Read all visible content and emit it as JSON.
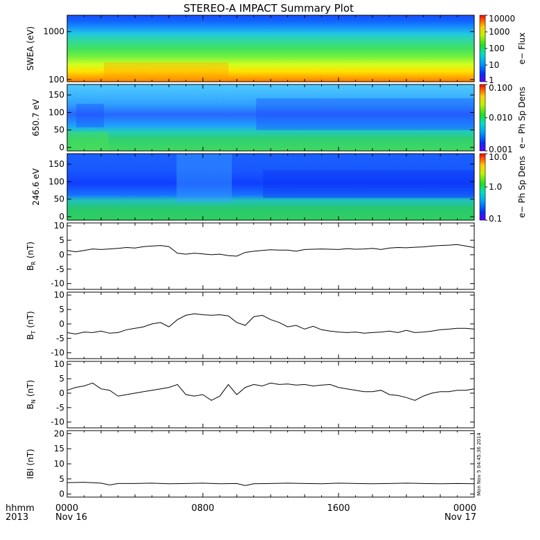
{
  "title": "STEREO-A IMPACT Summary Plot",
  "x_axis": {
    "row1_label": "hhmm",
    "row2_label": "2013",
    "ticks": [
      {
        "time": "0000",
        "date": "Nov 16",
        "hours": 0
      },
      {
        "time": "0800",
        "date": "",
        "hours": 8
      },
      {
        "time": "1600",
        "date": "",
        "hours": 16
      },
      {
        "time": "0000",
        "date": "Nov 17",
        "hours": 24
      }
    ],
    "range_hours": [
      0,
      24
    ]
  },
  "timestamp": "Mon Nov 5 04:45:36 2014",
  "chart_data": [
    {
      "type": "heatmap",
      "id": "swea",
      "ylabel": "SWEA (eV)",
      "yscale": "log",
      "ylim": [
        90,
        2200
      ],
      "yticks": [
        {
          "v": 100,
          "label": "100"
        },
        {
          "v": 1000,
          "label": "1000"
        }
      ],
      "colorbar": {
        "scale": "log",
        "range": [
          1,
          10000
        ],
        "ticks": [
          "1",
          "10",
          "100",
          "1000",
          "10000"
        ],
        "label": "e− Flux"
      },
      "description": "energy spectrogram, flux high (orange/red) at ~100 eV decreasing to blue above ~1500 eV"
    },
    {
      "type": "heatmap",
      "id": "pad650",
      "ylabel": "650.7 eV",
      "yscale": "linear",
      "ylim": [
        -10,
        180
      ],
      "yticks": [
        {
          "v": 0,
          "label": "0"
        },
        {
          "v": 50,
          "label": "50"
        },
        {
          "v": 100,
          "label": "100"
        },
        {
          "v": 150,
          "label": "150"
        }
      ],
      "colorbar": {
        "scale": "log",
        "range": [
          0.001,
          0.1
        ],
        "ticks": [
          "0.001",
          "0.010",
          "0.100"
        ],
        "label": "e− Ph Sp Dens"
      }
    },
    {
      "type": "heatmap",
      "id": "pad246",
      "ylabel": "246.6 eV",
      "yscale": "linear",
      "ylim": [
        -10,
        180
      ],
      "yticks": [
        {
          "v": 0,
          "label": "0"
        },
        {
          "v": 50,
          "label": "50"
        },
        {
          "v": 100,
          "label": "100"
        },
        {
          "v": 150,
          "label": "150"
        }
      ],
      "colorbar": {
        "scale": "log",
        "range": [
          0.1,
          10.0
        ],
        "ticks": [
          "0.1",
          "1.0",
          "10.0"
        ],
        "label": "e− Ph Sp Dens"
      }
    },
    {
      "type": "line",
      "id": "br",
      "ylabel": "B_R (nT)",
      "ylabel_main": "B",
      "ylabel_sub": "R",
      "ylabel_unit": "(nT)",
      "ylim": [
        -12,
        11
      ],
      "yticks": [
        {
          "v": 10,
          "label": "10"
        },
        {
          "v": 5,
          "label": "5"
        },
        {
          "v": 0,
          "label": "0"
        },
        {
          "v": -5,
          "label": "-5"
        },
        {
          "v": -10,
          "label": "-10"
        }
      ],
      "x": [
        0,
        0.5,
        1,
        1.5,
        2,
        2.5,
        3,
        3.5,
        4,
        4.5,
        5,
        5.5,
        6,
        6.5,
        7,
        7.5,
        8,
        8.5,
        9,
        9.5,
        10,
        10.5,
        11,
        11.5,
        12,
        12.5,
        13,
        13.5,
        14,
        14.5,
        15,
        15.5,
        16,
        16.5,
        17,
        17.5,
        18,
        18.5,
        19,
        19.5,
        20,
        20.5,
        21,
        21.5,
        22,
        22.5,
        23,
        23.5,
        24
      ],
      "y": [
        1.5,
        1.0,
        1.5,
        2.0,
        1.8,
        2.0,
        2.2,
        2.5,
        2.3,
        2.8,
        3.0,
        3.2,
        2.8,
        0.5,
        0.2,
        0.5,
        0.3,
        0.0,
        0.2,
        -0.3,
        -0.5,
        0.8,
        1.2,
        1.5,
        1.7,
        1.6,
        1.6,
        1.2,
        1.8,
        1.9,
        2.0,
        1.9,
        1.8,
        2.1,
        1.9,
        2.0,
        2.2,
        1.8,
        2.3,
        2.5,
        2.4,
        2.6,
        2.7,
        3.0,
        3.2,
        3.3,
        3.5,
        3.0,
        2.5
      ]
    },
    {
      "type": "line",
      "id": "bt",
      "ylabel": "B_T (nT)",
      "ylabel_main": "B",
      "ylabel_sub": "T",
      "ylabel_unit": "(nT)",
      "ylim": [
        -12,
        11
      ],
      "yticks": [
        {
          "v": 10,
          "label": "10"
        },
        {
          "v": 5,
          "label": "5"
        },
        {
          "v": 0,
          "label": "0"
        },
        {
          "v": -5,
          "label": "-5"
        },
        {
          "v": -10,
          "label": "-10"
        }
      ],
      "x": [
        0,
        0.5,
        1,
        1.5,
        2,
        2.5,
        3,
        3.5,
        4,
        4.5,
        5,
        5.5,
        6,
        6.5,
        7,
        7.5,
        8,
        8.5,
        9,
        9.5,
        10,
        10.5,
        11,
        11.5,
        12,
        12.5,
        13,
        13.5,
        14,
        14.5,
        15,
        15.5,
        16,
        16.5,
        17,
        17.5,
        18,
        18.5,
        19,
        19.5,
        20,
        20.5,
        21,
        21.5,
        22,
        22.5,
        23,
        23.5,
        24
      ],
      "y": [
        -3.0,
        -3.5,
        -2.8,
        -3.0,
        -2.5,
        -3.2,
        -3.0,
        -2.0,
        -1.5,
        -1.0,
        0.0,
        0.5,
        -1.0,
        1.5,
        3.0,
        3.5,
        3.2,
        3.0,
        3.2,
        2.8,
        0.5,
        -0.5,
        2.5,
        3.0,
        1.5,
        0.5,
        -1.0,
        -0.5,
        -1.8,
        -0.8,
        -2.0,
        -2.5,
        -2.8,
        -3.0,
        -2.8,
        -3.2,
        -3.0,
        -2.8,
        -2.5,
        -3.0,
        -2.2,
        -3.0,
        -2.8,
        -2.5,
        -2.0,
        -1.8,
        -1.5,
        -1.5,
        -1.8
      ]
    },
    {
      "type": "line",
      "id": "bn",
      "ylabel": "B_N (nT)",
      "ylabel_main": "B",
      "ylabel_sub": "N",
      "ylabel_unit": "(nT)",
      "ylim": [
        -12,
        11
      ],
      "yticks": [
        {
          "v": 10,
          "label": "10"
        },
        {
          "v": 5,
          "label": "5"
        },
        {
          "v": 0,
          "label": "0"
        },
        {
          "v": -5,
          "label": "-5"
        },
        {
          "v": -10,
          "label": "-10"
        }
      ],
      "x": [
        0,
        0.5,
        1,
        1.5,
        2,
        2.5,
        3,
        3.5,
        4,
        4.5,
        5,
        5.5,
        6,
        6.5,
        7,
        7.5,
        8,
        8.5,
        9,
        9.5,
        10,
        10.5,
        11,
        11.5,
        12,
        12.5,
        13,
        13.5,
        14,
        14.5,
        15,
        15.5,
        16,
        16.5,
        17,
        17.5,
        18,
        18.5,
        19,
        19.5,
        20,
        20.5,
        21,
        21.5,
        22,
        22.5,
        23,
        23.5,
        24
      ],
      "y": [
        1.0,
        2.0,
        2.5,
        3.5,
        1.5,
        1.0,
        -1.0,
        -0.5,
        0.0,
        0.5,
        1.0,
        1.5,
        2.0,
        3.0,
        -0.5,
        -1.0,
        -0.5,
        -2.5,
        -1.0,
        3.0,
        -0.5,
        2.0,
        3.0,
        2.5,
        3.5,
        3.0,
        3.2,
        2.8,
        3.0,
        2.5,
        2.8,
        3.0,
        2.0,
        1.5,
        1.0,
        0.5,
        0.5,
        1.0,
        -0.5,
        -0.8,
        -1.5,
        -2.5,
        -1.0,
        0.0,
        0.5,
        0.5,
        1.0,
        1.0,
        1.5
      ]
    },
    {
      "type": "line",
      "id": "bmag",
      "ylabel": "|B| (nT)",
      "ylabel_text": "IBI (nT)",
      "ylim": [
        -1,
        21
      ],
      "yticks": [
        {
          "v": 20,
          "label": "20"
        },
        {
          "v": 15,
          "label": "15"
        },
        {
          "v": 10,
          "label": "10"
        },
        {
          "v": 5,
          "label": "5"
        },
        {
          "v": 0,
          "label": "0"
        }
      ],
      "x": [
        0,
        1,
        2,
        2.5,
        3,
        4,
        5,
        6,
        7,
        8,
        9,
        10,
        10.5,
        11,
        12,
        13,
        14,
        15,
        16,
        17,
        18,
        19,
        20,
        21,
        22,
        23,
        24
      ],
      "y": [
        3.8,
        3.9,
        3.6,
        3.0,
        3.5,
        3.5,
        3.6,
        3.4,
        3.5,
        3.6,
        3.4,
        3.5,
        2.8,
        3.4,
        3.5,
        3.6,
        3.5,
        3.4,
        3.6,
        3.5,
        3.4,
        3.5,
        3.6,
        3.5,
        3.4,
        3.5,
        3.4
      ]
    }
  ]
}
